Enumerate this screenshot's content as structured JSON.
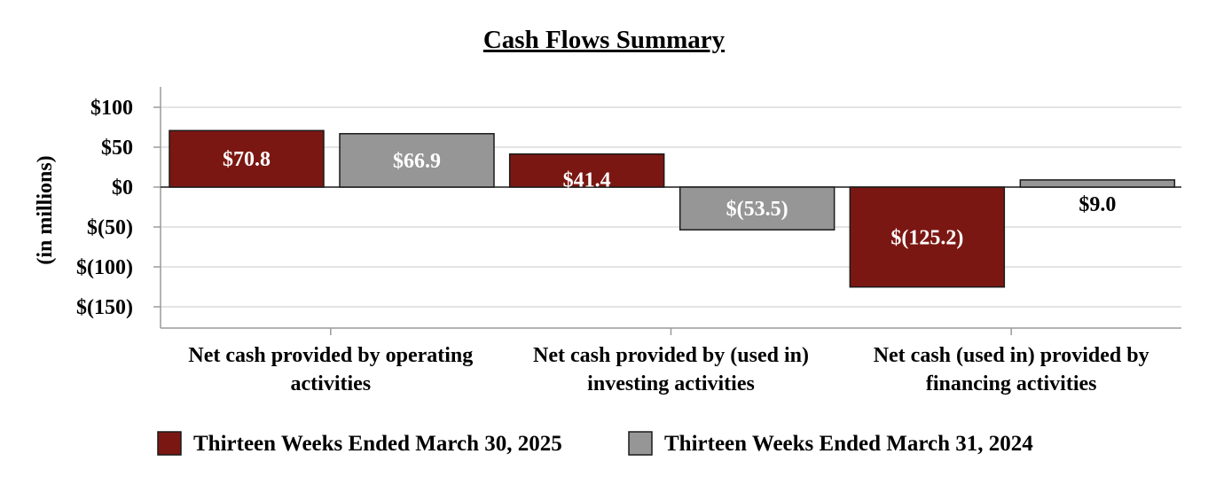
{
  "chart_data": {
    "type": "bar",
    "title": "Cash Flows Summary",
    "ylabel": "(in millions)",
    "xlabel": "",
    "ylim": [
      -150,
      100
    ],
    "y_ticks": [
      {
        "value": 100,
        "label": "$100"
      },
      {
        "value": 50,
        "label": "$50"
      },
      {
        "value": 0,
        "label": "$0"
      },
      {
        "value": -50,
        "label": "$(50)"
      },
      {
        "value": -100,
        "label": "$(100)"
      },
      {
        "value": -150,
        "label": "$(150)"
      }
    ],
    "categories": [
      [
        "Net cash provided by operating",
        "activities"
      ],
      [
        "Net cash provided by (used in)",
        "investing activities"
      ],
      [
        "Net cash (used in) provided by",
        "financing activities"
      ]
    ],
    "series": [
      {
        "name": "Thirteen Weeks Ended March 30, 2025",
        "color": "#7b1712",
        "values": [
          70.8,
          41.4,
          -125.2
        ],
        "labels": [
          "$70.8",
          "$41.4",
          "$(125.2)"
        ]
      },
      {
        "name": "Thirteen Weeks Ended March 31, 2024",
        "color": "#969696",
        "values": [
          66.9,
          -53.5,
          9.0
        ],
        "labels": [
          "$66.9",
          "$(53.5)",
          "$9.0"
        ]
      }
    ],
    "grid": true,
    "legend_position": "bottom"
  }
}
